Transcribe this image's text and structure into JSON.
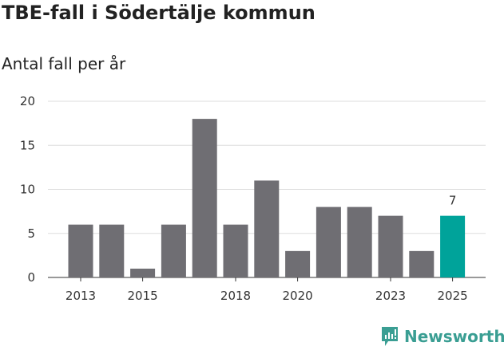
{
  "chart_data": {
    "type": "bar",
    "title": "TBE-fall i Södertälje kommun",
    "subtitle": "Antal fall per år",
    "categories": [
      "2013",
      "2014",
      "2015",
      "2016",
      "2017",
      "2018",
      "2019",
      "2020",
      "2021",
      "2022",
      "2023",
      "2024",
      "2025"
    ],
    "values": [
      6,
      6,
      1,
      6,
      18,
      6,
      11,
      3,
      8,
      8,
      7,
      3,
      7
    ],
    "x_tick_labels": [
      "2013",
      "2015",
      "2018",
      "2020",
      "2023",
      "2025"
    ],
    "y_ticks": [
      0,
      5,
      10,
      15,
      20
    ],
    "ylim": [
      0,
      20
    ],
    "grid": true,
    "highlight": {
      "category": "2025",
      "label": "7"
    },
    "colors": {
      "bar": "#6f6e73",
      "highlight": "#00a39a",
      "grid": "#dddddd"
    }
  },
  "branding": {
    "name": "Newsworthy",
    "color": "#3a9e93"
  }
}
